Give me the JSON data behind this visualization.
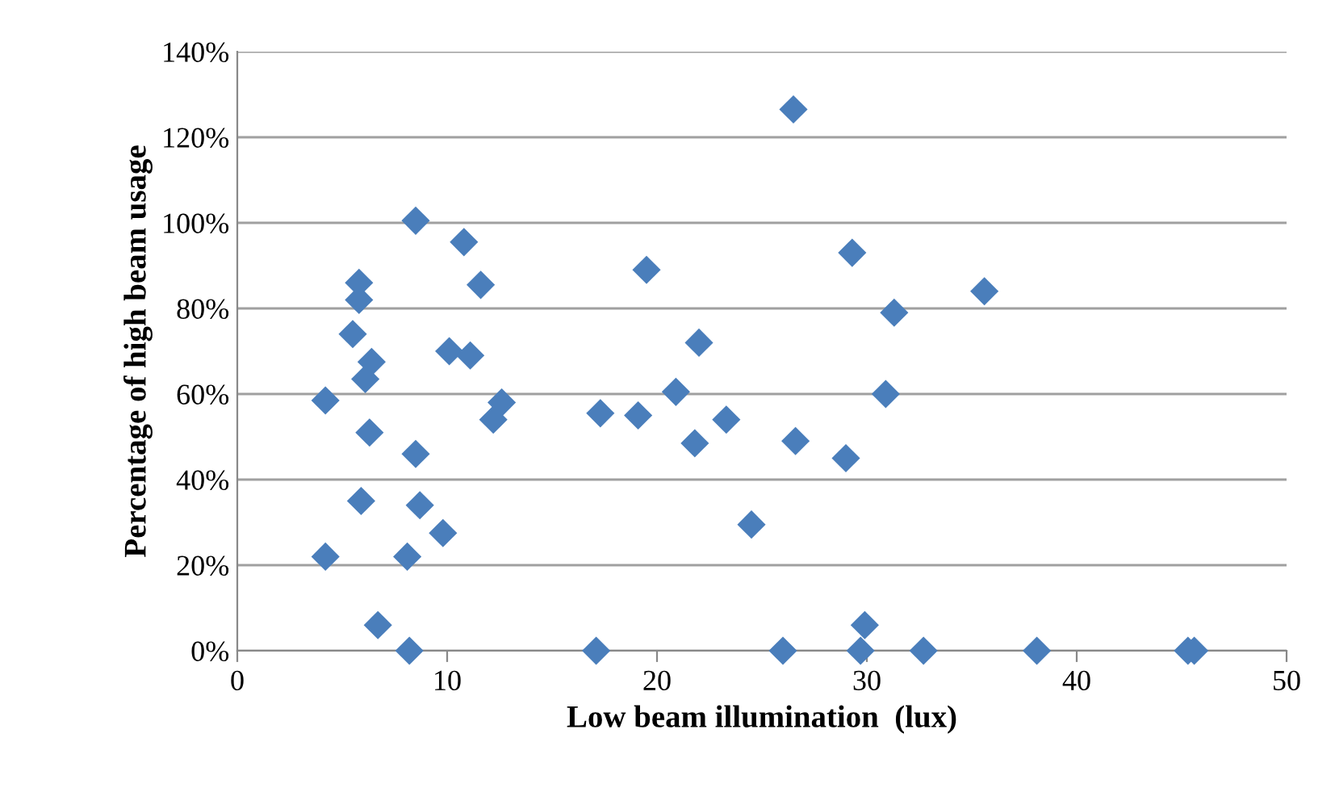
{
  "chart_data": {
    "type": "scatter",
    "xlabel": "Low beam illumination  (lux)",
    "ylabel": "Percentage of high beam usage",
    "x": [
      4.2,
      4.2,
      5.5,
      5.8,
      5.8,
      5.9,
      6.1,
      6.4,
      6.3,
      6.7,
      8.1,
      8.2,
      8.5,
      8.5,
      8.7,
      9.8,
      10.1,
      10.8,
      11.1,
      11.6,
      12.2,
      12.6,
      17.1,
      17.3,
      19.1,
      19.5,
      20.9,
      21.8,
      22,
      23.3,
      24.5,
      26,
      26.5,
      26.6,
      29,
      29.3,
      29.7,
      29.9,
      30.9,
      31.3,
      32.7,
      35.6,
      38.1,
      45.3,
      45.6
    ],
    "series": [
      {
        "color": "#4a7ebb",
        "values": [
          22,
          58.5,
          74,
          86,
          82,
          35,
          63.5,
          67.5,
          51,
          6,
          22,
          0,
          100.5,
          46,
          34,
          27.5,
          70,
          95.5,
          69,
          85.5,
          54,
          58,
          0,
          55.5,
          55,
          89,
          60.5,
          48.5,
          72,
          54,
          29.5,
          0,
          126.5,
          49,
          45,
          93,
          0,
          6,
          60,
          79,
          0,
          84,
          0,
          0,
          0
        ]
      }
    ],
    "xlim": [
      0,
      50
    ],
    "xticks": [
      0,
      10,
      20,
      30,
      40,
      50
    ],
    "ylim": [
      0,
      140
    ],
    "yticks": [
      {
        "value": 0,
        "label": "0%"
      },
      {
        "value": 20,
        "label": "20%"
      },
      {
        "value": 40,
        "label": "40%"
      },
      {
        "value": 60,
        "label": "60%"
      },
      {
        "value": 80,
        "label": "80%"
      },
      {
        "value": 100,
        "label": "100%"
      },
      {
        "value": 120,
        "label": "120%"
      },
      {
        "value": 140,
        "label": "140%"
      }
    ],
    "grid": "y",
    "marker": "diamond"
  }
}
